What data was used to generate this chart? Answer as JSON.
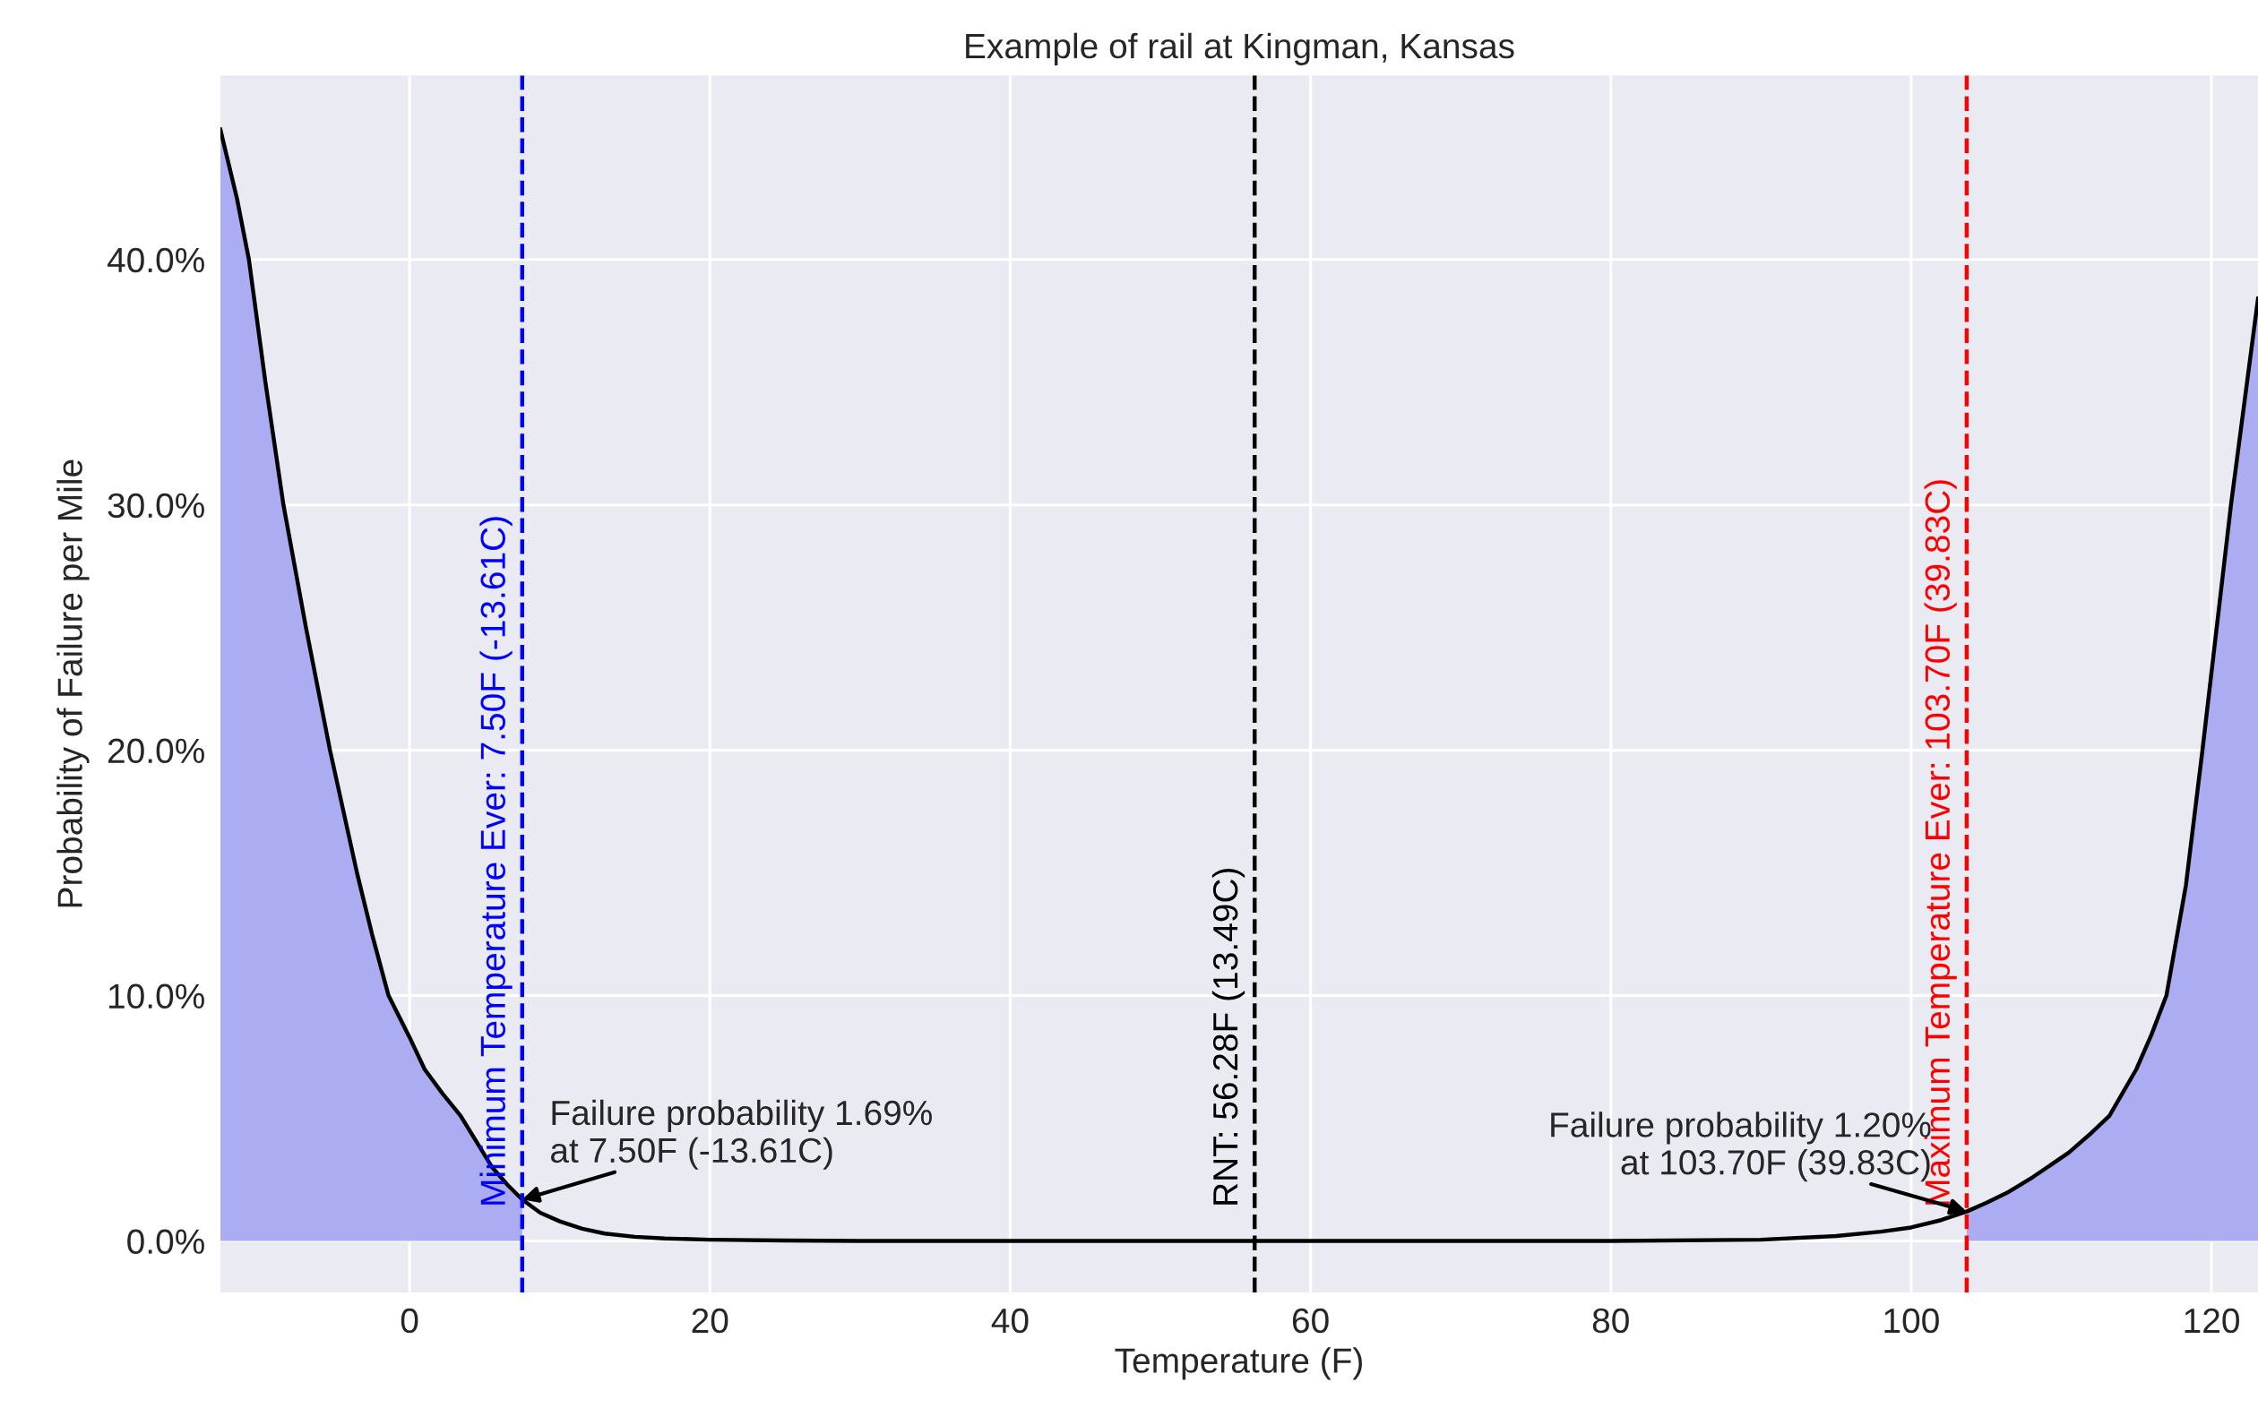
{
  "chart_data": {
    "type": "line",
    "title": "Example of rail at Kingman, Kansas",
    "xlabel": "Temperature (F)",
    "ylabel": "Probability of Failure per Mile",
    "series": [
      {
        "type": "area",
        "color": "#acacf2",
        "x": [
          -12.6,
          -11.5,
          -10.7,
          -9.6,
          -8.4,
          -6.9,
          -5.3,
          -3.5,
          -2.5,
          -1.4,
          0,
          1,
          2.2,
          3.4,
          4.5,
          5.5,
          6.5,
          7.5
        ],
        "values": [
          45.3,
          42.5,
          40,
          35,
          30,
          25,
          20,
          15,
          12.5,
          10,
          8.3,
          7,
          6,
          5.1,
          4,
          3,
          2.3,
          1.69
        ]
      },
      {
        "type": "area",
        "color": "#acacf2",
        "x": [
          103.7,
          105,
          106.5,
          108.1,
          110.5,
          112,
          113.2,
          115,
          116,
          117,
          118.3,
          119.4,
          121.3,
          123.1
        ],
        "values": [
          1.2,
          1.55,
          2,
          2.6,
          3.6,
          4.4,
          5.1,
          7,
          8.4,
          10,
          14.5,
          20,
          30,
          38.4
        ]
      },
      {
        "color": "#000000",
        "x": [
          -12.6,
          -11.5,
          -10.7,
          -9.6,
          -8.4,
          -6.9,
          -5.3,
          -3.5,
          -2.5,
          -1.4,
          0,
          1,
          2.2,
          3.4,
          4.5,
          5.5,
          6.5,
          7.5,
          8.7,
          10,
          11.5,
          13,
          15,
          17,
          20,
          25,
          30,
          56.28,
          80,
          90,
          95,
          98,
          100,
          102,
          103.7,
          105,
          106.5,
          108.1,
          110.5,
          112,
          113.2,
          115,
          116,
          117,
          118.3,
          119.4,
          121.3,
          123.1
        ],
        "values": [
          45.3,
          42.5,
          40,
          35,
          30,
          25,
          20,
          15,
          12.5,
          10,
          8.3,
          7,
          6,
          5.1,
          4,
          3,
          2.3,
          1.69,
          1.15,
          0.8,
          0.5,
          0.3,
          0.17,
          0.1,
          0.05,
          0.02,
          0,
          0,
          0,
          0.05,
          0.2,
          0.38,
          0.55,
          0.85,
          1.2,
          1.55,
          2,
          2.6,
          3.6,
          4.4,
          5.1,
          7,
          8.4,
          10,
          14.5,
          20,
          30,
          38.4
        ]
      }
    ],
    "xlim": [
      -12.6,
      123.1
    ],
    "xticks": [
      0,
      20,
      40,
      60,
      80,
      100,
      120
    ],
    "ylim": [
      -2.1,
      47.5
    ],
    "yticks": [
      {
        "value": 0,
        "label": "0.0%"
      },
      {
        "value": 10,
        "label": "10.0%"
      },
      {
        "value": 20,
        "label": "20.0%"
      },
      {
        "value": 30,
        "label": "30.0%"
      },
      {
        "value": 40,
        "label": "40.0%"
      }
    ],
    "grid": true,
    "ref_lines": [
      {
        "axis": "x",
        "value": 7.5,
        "label": "Minimum Temperature Ever: 7.50F (-13.61C)",
        "color": "#0000ff",
        "line_style": "dashed"
      },
      {
        "axis": "x",
        "value": 56.28,
        "label": "RNT: 56.28F (13.49C)",
        "color": "#000000",
        "line_style": "dashed"
      },
      {
        "axis": "x",
        "value": 103.7,
        "label": "Maximum Temperature Ever: 103.70F (39.83C)",
        "color": "#ff0000",
        "line_style": "dashed"
      }
    ],
    "annotations": [
      {
        "text": "Failure probability 1.69%\nat 7.50F (-13.61C)",
        "x": 7.5,
        "y": 1.69
      },
      {
        "text": "Failure probability 1.20%\nat 103.70F (39.83C)",
        "x": 103.7,
        "y": 1.2
      }
    ]
  }
}
